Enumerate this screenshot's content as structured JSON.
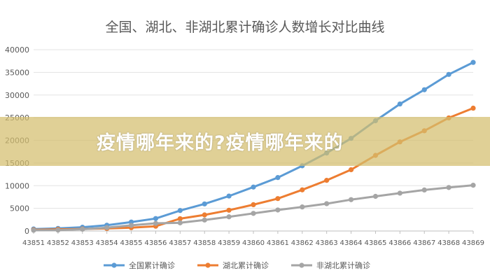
{
  "overlay": {
    "banner_text": "疫情哪年来的?疫情哪年来的",
    "banner_color": "#d4be6e"
  },
  "chart_data": {
    "type": "line",
    "title": "全国、湖北、非湖北累计确诊人数增长对比曲线",
    "xlabel": "",
    "ylabel": "",
    "x": [
      "43851",
      "43852",
      "43853",
      "43854",
      "43855",
      "43856",
      "43857",
      "43858",
      "43859",
      "43860",
      "43861",
      "43862",
      "43863",
      "43864",
      "43865",
      "43866",
      "43867",
      "43868",
      "43869"
    ],
    "ylim": [
      0,
      40000
    ],
    "yticks": [
      0,
      5000,
      10000,
      15000,
      20000,
      25000,
      30000,
      35000,
      40000
    ],
    "grid": true,
    "legend_position": "bottom",
    "series": [
      {
        "name": "全国累计确诊",
        "color": "#5b9bd5",
        "values": [
          440,
          571,
          830,
          1287,
          1975,
          2744,
          4515,
          5974,
          7711,
          9692,
          11791,
          14380,
          17205,
          20438,
          24324,
          28018,
          31161,
          34546,
          37198
        ]
      },
      {
        "name": "湖北累计确诊",
        "color": "#ed7d31",
        "values": [
          270,
          375,
          444,
          549,
          729,
          1052,
          2714,
          3554,
          4586,
          5806,
          7153,
          9074,
          11177,
          13522,
          16678,
          19665,
          22112,
          24953,
          27100
        ]
      },
      {
        "name": "非湖北累计确诊",
        "color": "#a5a5a5",
        "values": [
          170,
          196,
          386,
          738,
          1246,
          1692,
          1801,
          2420,
          3125,
          3886,
          4638,
          5306,
          6028,
          6916,
          7646,
          8353,
          9049,
          9593,
          10098
        ]
      }
    ]
  }
}
